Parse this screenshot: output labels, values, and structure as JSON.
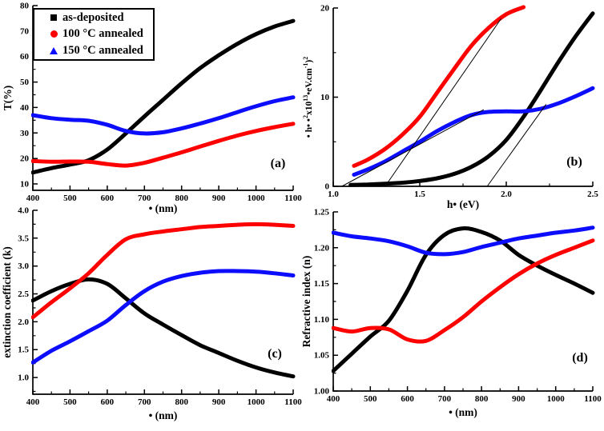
{
  "figure": {
    "background": "#ffffff",
    "colors": {
      "black": "#000000",
      "red": "#fd0000",
      "blue": "#0d0dfd"
    },
    "legend": {
      "items": [
        {
          "label": "as-deposited",
          "marker": "square",
          "color": "black"
        },
        {
          "label": "100 °C annealed",
          "marker": "circle",
          "color": "red"
        },
        {
          "label": "150 °C annealed",
          "marker": "triangle",
          "color": "blue"
        }
      ]
    }
  },
  "chart_data": [
    {
      "id": "a",
      "type": "line",
      "panel_label": "(a)",
      "xlabel": "• (nm)",
      "ylabel": "T(%)",
      "xlim": [
        400,
        1100
      ],
      "ylim": [
        7.5,
        80
      ],
      "xticks": [
        {
          "v": 400,
          "t": "400"
        },
        {
          "v": 500,
          "t": "500"
        },
        {
          "v": 600,
          "t": "600"
        },
        {
          "v": 700,
          "t": "700"
        },
        {
          "v": 800,
          "t": "800"
        },
        {
          "v": 900,
          "t": "900"
        },
        {
          "v": 1000,
          "t": "1000"
        },
        {
          "v": 1100,
          "t": "1100"
        }
      ],
      "xminor": [
        450,
        550,
        650,
        750,
        850,
        950,
        1050
      ],
      "yticks": [
        {
          "v": 10,
          "t": "10"
        },
        {
          "v": 20,
          "t": "20"
        },
        {
          "v": 30,
          "t": "30"
        },
        {
          "v": 40,
          "t": "40"
        },
        {
          "v": 50,
          "t": "50"
        },
        {
          "v": 60,
          "t": "60"
        },
        {
          "v": 70,
          "t": "70"
        },
        {
          "v": 80,
          "t": "80"
        }
      ],
      "yminor": [
        15,
        25,
        35,
        45,
        55,
        65,
        75
      ],
      "series": [
        {
          "name": "as-deposited",
          "color": "black",
          "x": [
            400,
            450,
            500,
            550,
            600,
            650,
            700,
            750,
            800,
            850,
            900,
            950,
            1000,
            1050,
            1100
          ],
          "y": [
            14.5,
            16.2,
            17.6,
            19.3,
            23.5,
            29.8,
            36.5,
            43.0,
            49.5,
            55.5,
            60.5,
            65.0,
            68.8,
            71.8,
            74.0
          ]
        },
        {
          "name": "100C-annealed",
          "color": "red",
          "x": [
            400,
            450,
            500,
            550,
            600,
            650,
            700,
            750,
            800,
            850,
            900,
            950,
            1000,
            1050,
            1100
          ],
          "y": [
            19.0,
            18.7,
            18.8,
            18.7,
            17.8,
            17.2,
            18.3,
            20.3,
            22.4,
            24.7,
            26.9,
            29.0,
            30.8,
            32.3,
            33.6
          ]
        },
        {
          "name": "150C-annealed",
          "color": "blue",
          "x": [
            400,
            450,
            500,
            550,
            600,
            650,
            700,
            750,
            800,
            850,
            900,
            950,
            1000,
            1050,
            1100
          ],
          "y": [
            37.0,
            35.8,
            35.2,
            34.8,
            33.2,
            30.8,
            29.8,
            30.3,
            31.8,
            33.7,
            35.8,
            38.2,
            40.5,
            42.5,
            44.0
          ]
        }
      ]
    },
    {
      "id": "b",
      "type": "line",
      "panel_label": "(b)",
      "xlabel": "h• (eV)",
      "ylabel_segments": [
        {
          "t": "• h• •",
          "sup": false
        },
        {
          "t": "2",
          "sup": true
        },
        {
          "t": "x10",
          "sup": false
        },
        {
          "t": "13",
          "sup": true
        },
        {
          "t": "•eV.cm",
          "sup": false
        },
        {
          "t": "-1",
          "sup": true
        },
        {
          "t": ")",
          "sup": false
        },
        {
          "t": "2",
          "sup": true
        }
      ],
      "xlim": [
        1.0,
        2.5
      ],
      "ylim": [
        0,
        20
      ],
      "xticks": [
        {
          "v": 1.0,
          "t": "1.0"
        },
        {
          "v": 1.5,
          "t": "1.5"
        },
        {
          "v": 2.0,
          "t": "2.0"
        },
        {
          "v": 2.5,
          "t": "2.5"
        }
      ],
      "xminor": [
        1.25,
        1.75,
        2.25
      ],
      "yticks": [
        {
          "v": 0,
          "t": "0"
        },
        {
          "v": 10,
          "t": "10"
        },
        {
          "v": 20,
          "t": "20"
        }
      ],
      "yminor": [
        5,
        15
      ],
      "guide_lines": [
        {
          "x1": 1.05,
          "y1": 0,
          "x2": 1.87,
          "y2": 8.6
        },
        {
          "x1": 1.3,
          "y1": 0,
          "x2": 1.97,
          "y2": 18.8
        },
        {
          "x1": 1.89,
          "y1": 0,
          "x2": 2.23,
          "y2": 9.2
        }
      ],
      "series": [
        {
          "name": "as-deposited",
          "color": "black",
          "x": [
            1.1,
            1.2,
            1.3,
            1.4,
            1.5,
            1.6,
            1.7,
            1.8,
            1.9,
            2.0,
            2.1,
            2.2,
            2.3,
            2.4,
            2.5
          ],
          "y": [
            0.15,
            0.2,
            0.3,
            0.4,
            0.6,
            0.9,
            1.4,
            2.2,
            3.4,
            5.2,
            7.8,
            10.8,
            13.9,
            16.8,
            19.4
          ]
        },
        {
          "name": "100C-annealed",
          "color": "red",
          "x": [
            1.12,
            1.2,
            1.3,
            1.4,
            1.5,
            1.6,
            1.7,
            1.8,
            1.9,
            2.0,
            2.1
          ],
          "y": [
            2.3,
            3.0,
            4.2,
            5.8,
            7.8,
            10.5,
            13.2,
            15.8,
            17.8,
            19.3,
            20.1
          ]
        },
        {
          "name": "150C-annealed",
          "color": "blue",
          "x": [
            1.12,
            1.2,
            1.3,
            1.4,
            1.5,
            1.6,
            1.7,
            1.8,
            1.9,
            2.0,
            2.1,
            2.2,
            2.3,
            2.4,
            2.5
          ],
          "y": [
            1.3,
            1.9,
            2.8,
            3.9,
            5.0,
            6.2,
            7.2,
            8.0,
            8.35,
            8.4,
            8.4,
            8.7,
            9.3,
            10.1,
            11.0
          ]
        }
      ]
    },
    {
      "id": "c",
      "type": "line",
      "panel_label": "(c)",
      "xlabel": "• (nm)",
      "ylabel": "extinction coefficient (k)",
      "xlim": [
        400,
        1100
      ],
      "ylim": [
        0.7,
        4.0
      ],
      "xticks": [
        {
          "v": 400,
          "t": "400"
        },
        {
          "v": 500,
          "t": "500"
        },
        {
          "v": 600,
          "t": "600"
        },
        {
          "v": 700,
          "t": "700"
        },
        {
          "v": 800,
          "t": "800"
        },
        {
          "v": 900,
          "t": "900"
        },
        {
          "v": 1000,
          "t": "1000"
        },
        {
          "v": 1100,
          "t": "1100"
        }
      ],
      "xminor": [
        450,
        550,
        650,
        750,
        850,
        950,
        1050
      ],
      "yticks": [
        {
          "v": 1.0,
          "t": "1.0"
        },
        {
          "v": 1.5,
          "t": "1.5"
        },
        {
          "v": 2.0,
          "t": "2.0"
        },
        {
          "v": 2.5,
          "t": "2.5"
        },
        {
          "v": 3.0,
          "t": "3.0"
        },
        {
          "v": 3.5,
          "t": "3.5"
        },
        {
          "v": 4.0,
          "t": "4.0"
        }
      ],
      "yminor": [
        0.75,
        1.25,
        1.75,
        2.25,
        2.75,
        3.25,
        3.75
      ],
      "series": [
        {
          "name": "as-deposited",
          "color": "black",
          "x": [
            400,
            450,
            500,
            550,
            600,
            650,
            700,
            750,
            800,
            850,
            900,
            950,
            1000,
            1050,
            1100
          ],
          "y": [
            2.38,
            2.55,
            2.68,
            2.76,
            2.68,
            2.42,
            2.15,
            1.95,
            1.76,
            1.58,
            1.44,
            1.3,
            1.18,
            1.09,
            1.02
          ]
        },
        {
          "name": "100C-annealed",
          "color": "red",
          "x": [
            400,
            450,
            500,
            550,
            600,
            650,
            700,
            750,
            800,
            850,
            900,
            950,
            1000,
            1050,
            1100
          ],
          "y": [
            2.08,
            2.35,
            2.6,
            2.87,
            3.2,
            3.48,
            3.57,
            3.62,
            3.66,
            3.7,
            3.72,
            3.74,
            3.75,
            3.74,
            3.72
          ]
        },
        {
          "name": "150C-annealed",
          "color": "blue",
          "x": [
            400,
            450,
            500,
            550,
            600,
            650,
            700,
            750,
            800,
            850,
            900,
            950,
            1000,
            1050,
            1100
          ],
          "y": [
            1.27,
            1.48,
            1.65,
            1.83,
            2.02,
            2.3,
            2.55,
            2.72,
            2.82,
            2.88,
            2.91,
            2.91,
            2.9,
            2.87,
            2.83
          ]
        }
      ]
    },
    {
      "id": "d",
      "type": "line",
      "panel_label": "(d)",
      "xlabel": "• (nm)",
      "ylabel": "Refractive index (n)",
      "xlim": [
        400,
        1100
      ],
      "ylim": [
        1.0,
        1.25
      ],
      "xticks": [
        {
          "v": 400,
          "t": "400"
        },
        {
          "v": 500,
          "t": "500"
        },
        {
          "v": 600,
          "t": "600"
        },
        {
          "v": 700,
          "t": "700"
        },
        {
          "v": 800,
          "t": "800"
        },
        {
          "v": 900,
          "t": "900"
        },
        {
          "v": 1000,
          "t": "1000"
        },
        {
          "v": 1100,
          "t": "1100"
        }
      ],
      "xminor": [
        450,
        550,
        650,
        750,
        850,
        950,
        1050
      ],
      "yticks": [
        {
          "v": 1.0,
          "t": "1.00"
        },
        {
          "v": 1.05,
          "t": "1.05"
        },
        {
          "v": 1.1,
          "t": "1.10"
        },
        {
          "v": 1.15,
          "t": "1.15"
        },
        {
          "v": 1.2,
          "t": "1.20"
        },
        {
          "v": 1.25,
          "t": "1.25"
        }
      ],
      "yminor": [
        1.025,
        1.075,
        1.125,
        1.175,
        1.225
      ],
      "series": [
        {
          "name": "as-deposited",
          "color": "black",
          "x": [
            400,
            450,
            500,
            550,
            600,
            650,
            700,
            750,
            800,
            850,
            900,
            950,
            1000,
            1050,
            1100
          ],
          "y": [
            1.028,
            1.052,
            1.076,
            1.098,
            1.14,
            1.19,
            1.218,
            1.227,
            1.222,
            1.21,
            1.19,
            1.175,
            1.162,
            1.15,
            1.137
          ]
        },
        {
          "name": "100C-annealed",
          "color": "red",
          "x": [
            400,
            450,
            500,
            550,
            600,
            650,
            700,
            750,
            800,
            850,
            900,
            950,
            1000,
            1050,
            1100
          ],
          "y": [
            1.088,
            1.083,
            1.088,
            1.086,
            1.072,
            1.07,
            1.085,
            1.103,
            1.125,
            1.145,
            1.163,
            1.178,
            1.19,
            1.2,
            1.21
          ]
        },
        {
          "name": "150C-annealed",
          "color": "blue",
          "x": [
            400,
            450,
            500,
            550,
            600,
            650,
            700,
            750,
            800,
            850,
            900,
            950,
            1000,
            1050,
            1100
          ],
          "y": [
            1.221,
            1.216,
            1.213,
            1.209,
            1.202,
            1.193,
            1.191,
            1.194,
            1.201,
            1.207,
            1.213,
            1.217,
            1.221,
            1.224,
            1.228
          ]
        }
      ]
    }
  ]
}
